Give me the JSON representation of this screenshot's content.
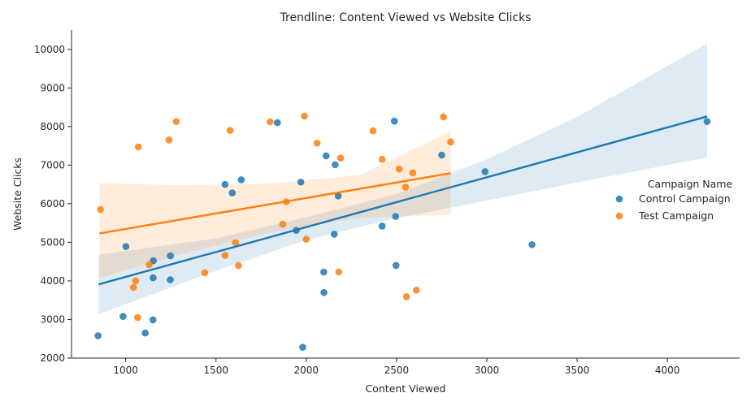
{
  "chart_data": {
    "type": "scatter",
    "title": "Trendline: Content Viewed vs Website Clicks",
    "xlabel": "Content Viewed",
    "ylabel": "Website Clicks",
    "xlim": [
      700,
      4400
    ],
    "ylim": [
      2000,
      10500
    ],
    "xticks": [
      1000,
      1500,
      2000,
      2500,
      3000,
      3500,
      4000
    ],
    "yticks": [
      2000,
      3000,
      4000,
      5000,
      6000,
      7000,
      8000,
      9000,
      10000
    ],
    "grid": false,
    "legend": {
      "title": "Campaign Name",
      "placement": "right"
    },
    "series": [
      {
        "name": "Control Campaign",
        "color": "#1f77b4",
        "points": [
          [
            847,
            2580
          ],
          [
            985,
            3080
          ],
          [
            1001,
            4890
          ],
          [
            1108,
            2650
          ],
          [
            1151,
            2990
          ],
          [
            1152,
            4080
          ],
          [
            1153,
            4520
          ],
          [
            1247,
            4030
          ],
          [
            1248,
            4650
          ],
          [
            1550,
            6500
          ],
          [
            1590,
            6280
          ],
          [
            1640,
            6620
          ],
          [
            1840,
            8100
          ],
          [
            1945,
            5310
          ],
          [
            1970,
            6560
          ],
          [
            1980,
            2280
          ],
          [
            2097,
            4230
          ],
          [
            2098,
            3700
          ],
          [
            2110,
            7240
          ],
          [
            2155,
            5210
          ],
          [
            2160,
            7010
          ],
          [
            2177,
            6200
          ],
          [
            2420,
            5420
          ],
          [
            2488,
            8140
          ],
          [
            2495,
            5670
          ],
          [
            2497,
            4400
          ],
          [
            2750,
            7260
          ],
          [
            2990,
            6830
          ],
          [
            3250,
            4940
          ],
          [
            4220,
            8130
          ]
        ],
        "trend": {
          "x": [
            850,
            4220
          ],
          "y": [
            3910,
            8260
          ]
        },
        "ci": {
          "x": [
            850,
            1500,
            2000,
            2500,
            3000,
            3500,
            4220
          ],
          "upper": [
            4680,
            5100,
            5650,
            6250,
            7150,
            8250,
            10150
          ],
          "lower": [
            3140,
            4260,
            5060,
            5630,
            6080,
            6550,
            7200
          ]
        }
      },
      {
        "name": "Test Campaign",
        "color": "#ff7f0e",
        "points": [
          [
            860,
            5850
          ],
          [
            1043,
            3830
          ],
          [
            1055,
            4000
          ],
          [
            1066,
            3050
          ],
          [
            1070,
            7470
          ],
          [
            1130,
            4420
          ],
          [
            1240,
            7650
          ],
          [
            1280,
            8130
          ],
          [
            1437,
            4210
          ],
          [
            1550,
            4660
          ],
          [
            1578,
            7900
          ],
          [
            1608,
            4990
          ],
          [
            1625,
            4400
          ],
          [
            1800,
            8120
          ],
          [
            1870,
            5470
          ],
          [
            1890,
            6050
          ],
          [
            1990,
            8270
          ],
          [
            2000,
            5080
          ],
          [
            2060,
            7570
          ],
          [
            2180,
            4230
          ],
          [
            2190,
            7180
          ],
          [
            2370,
            7890
          ],
          [
            2420,
            7150
          ],
          [
            2515,
            6900
          ],
          [
            2550,
            6430
          ],
          [
            2555,
            3590
          ],
          [
            2590,
            6800
          ],
          [
            2610,
            3760
          ],
          [
            2760,
            8250
          ],
          [
            2800,
            7600
          ]
        ],
        "trend": {
          "x": [
            855,
            2800
          ],
          "y": [
            5230,
            6790
          ]
        },
        "ci": {
          "x": [
            855,
            1300,
            1800,
            2300,
            2800
          ],
          "upper": [
            6530,
            6480,
            6520,
            6750,
            7880
          ],
          "lower": [
            4080,
            4680,
            5250,
            5640,
            5710
          ]
        }
      }
    ]
  }
}
